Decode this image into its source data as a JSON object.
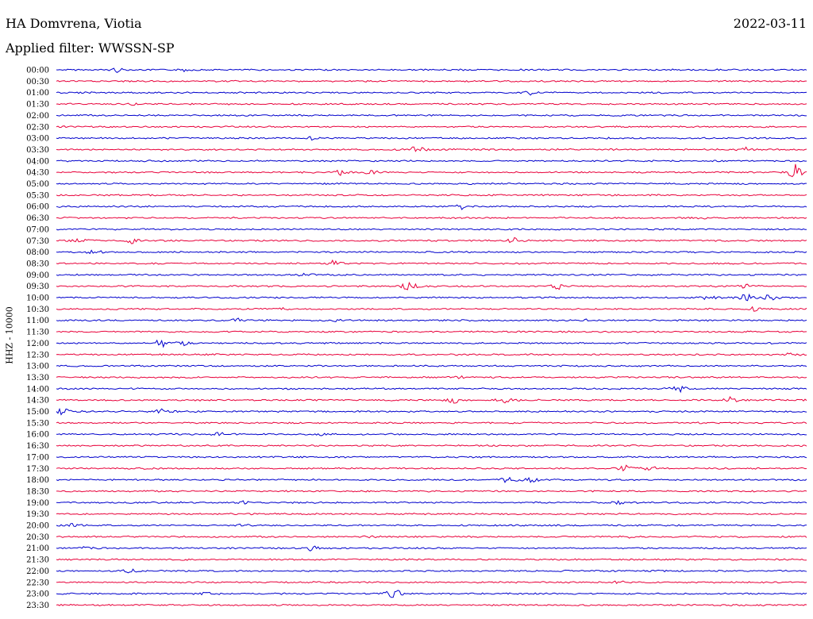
{
  "header": {
    "station": "HA Domvrena, Viotia",
    "filter": "Applied filter: WWSSN-SP",
    "date": "2022-03-11"
  },
  "colors": {
    "even_hour": "#0000cc",
    "half_hour": "#e8003a"
  },
  "chart_data": {
    "type": "line",
    "title": "",
    "ylabel": "HHZ - 10000",
    "xlabel": "",
    "grid": false,
    "legend": "none",
    "rows": [
      {
        "label": "00:00",
        "events": [
          {
            "t": 0.08,
            "a": 3
          },
          {
            "t": 0.17,
            "a": 2
          }
        ]
      },
      {
        "label": "00:30",
        "events": []
      },
      {
        "label": "01:00",
        "events": [
          {
            "t": 0.63,
            "a": 3
          }
        ]
      },
      {
        "label": "01:30",
        "events": [
          {
            "t": 0.1,
            "a": 2
          }
        ]
      },
      {
        "label": "02:00",
        "events": []
      },
      {
        "label": "02:30",
        "events": []
      },
      {
        "label": "03:00",
        "events": [
          {
            "t": 0.34,
            "a": 2
          }
        ]
      },
      {
        "label": "03:30",
        "events": [
          {
            "t": 0.48,
            "a": 6
          },
          {
            "t": 0.92,
            "a": 3
          }
        ]
      },
      {
        "label": "04:00",
        "events": []
      },
      {
        "label": "04:30",
        "events": [
          {
            "t": 0.38,
            "a": 4
          },
          {
            "t": 0.42,
            "a": 3
          },
          {
            "t": 0.985,
            "a": 12
          }
        ]
      },
      {
        "label": "05:00",
        "events": []
      },
      {
        "label": "05:30",
        "events": []
      },
      {
        "label": "06:00",
        "events": [
          {
            "t": 0.54,
            "a": 5
          }
        ]
      },
      {
        "label": "06:30",
        "events": [
          {
            "t": 0.86,
            "a": 2
          }
        ]
      },
      {
        "label": "07:00",
        "events": []
      },
      {
        "label": "07:30",
        "events": [
          {
            "t": 0.03,
            "a": 4
          },
          {
            "t": 0.1,
            "a": 4
          },
          {
            "t": 0.61,
            "a": 5
          }
        ]
      },
      {
        "label": "08:00",
        "events": [
          {
            "t": 0.05,
            "a": 3
          }
        ]
      },
      {
        "label": "08:30",
        "events": [
          {
            "t": 0.37,
            "a": 4
          }
        ]
      },
      {
        "label": "09:00",
        "events": [
          {
            "t": 0.33,
            "a": 2
          }
        ]
      },
      {
        "label": "09:30",
        "events": [
          {
            "t": 0.47,
            "a": 8
          },
          {
            "t": 0.67,
            "a": 5
          },
          {
            "t": 0.92,
            "a": 4
          }
        ]
      },
      {
        "label": "10:00",
        "events": [
          {
            "t": 0.87,
            "a": 4
          },
          {
            "t": 0.92,
            "a": 6
          },
          {
            "t": 0.95,
            "a": 5
          }
        ]
      },
      {
        "label": "10:30",
        "events": [
          {
            "t": 0.3,
            "a": 3
          },
          {
            "t": 0.93,
            "a": 3
          }
        ]
      },
      {
        "label": "11:00",
        "events": [
          {
            "t": 0.24,
            "a": 3
          },
          {
            "t": 0.37,
            "a": 2
          },
          {
            "t": 0.71,
            "a": 2
          }
        ]
      },
      {
        "label": "11:30",
        "events": []
      },
      {
        "label": "12:00",
        "events": [
          {
            "t": 0.14,
            "a": 7
          },
          {
            "t": 0.17,
            "a": 3
          }
        ]
      },
      {
        "label": "12:30",
        "events": [
          {
            "t": 0.98,
            "a": 2
          }
        ]
      },
      {
        "label": "13:00",
        "events": []
      },
      {
        "label": "13:30",
        "events": [
          {
            "t": 0.54,
            "a": 2
          }
        ]
      },
      {
        "label": "14:00",
        "events": [
          {
            "t": 0.83,
            "a": 6
          }
        ]
      },
      {
        "label": "14:30",
        "events": [
          {
            "t": 0.53,
            "a": 4
          },
          {
            "t": 0.6,
            "a": 4
          },
          {
            "t": 0.9,
            "a": 5
          }
        ]
      },
      {
        "label": "15:00",
        "events": [
          {
            "t": 0.005,
            "a": 9
          },
          {
            "t": 0.14,
            "a": 3
          }
        ]
      },
      {
        "label": "15:30",
        "events": []
      },
      {
        "label": "16:00",
        "events": [
          {
            "t": 0.22,
            "a": 4
          },
          {
            "t": 0.35,
            "a": 2
          }
        ]
      },
      {
        "label": "16:30",
        "events": []
      },
      {
        "label": "17:00",
        "events": []
      },
      {
        "label": "17:30",
        "events": [
          {
            "t": 0.76,
            "a": 5
          },
          {
            "t": 0.79,
            "a": 5
          }
        ]
      },
      {
        "label": "18:00",
        "events": [
          {
            "t": 0.6,
            "a": 4
          },
          {
            "t": 0.63,
            "a": 5
          }
        ]
      },
      {
        "label": "18:30",
        "events": []
      },
      {
        "label": "19:00",
        "events": [
          {
            "t": 0.25,
            "a": 2
          },
          {
            "t": 0.75,
            "a": 3
          }
        ]
      },
      {
        "label": "19:30",
        "events": []
      },
      {
        "label": "20:00",
        "events": [
          {
            "t": 0.02,
            "a": 2
          },
          {
            "t": 0.25,
            "a": 2
          }
        ]
      },
      {
        "label": "20:30",
        "events": [
          {
            "t": 0.42,
            "a": 2
          },
          {
            "t": 0.76,
            "a": 2
          }
        ]
      },
      {
        "label": "21:00",
        "events": [
          {
            "t": 0.04,
            "a": 2
          },
          {
            "t": 0.34,
            "a": 4
          }
        ]
      },
      {
        "label": "21:30",
        "events": []
      },
      {
        "label": "22:00",
        "events": [
          {
            "t": 0.1,
            "a": 3
          }
        ]
      },
      {
        "label": "22:30",
        "events": [
          {
            "t": 0.75,
            "a": 2
          }
        ]
      },
      {
        "label": "23:00",
        "events": [
          {
            "t": 0.2,
            "a": 2
          },
          {
            "t": 0.45,
            "a": 10
          }
        ]
      },
      {
        "label": "23:30",
        "events": []
      }
    ]
  }
}
